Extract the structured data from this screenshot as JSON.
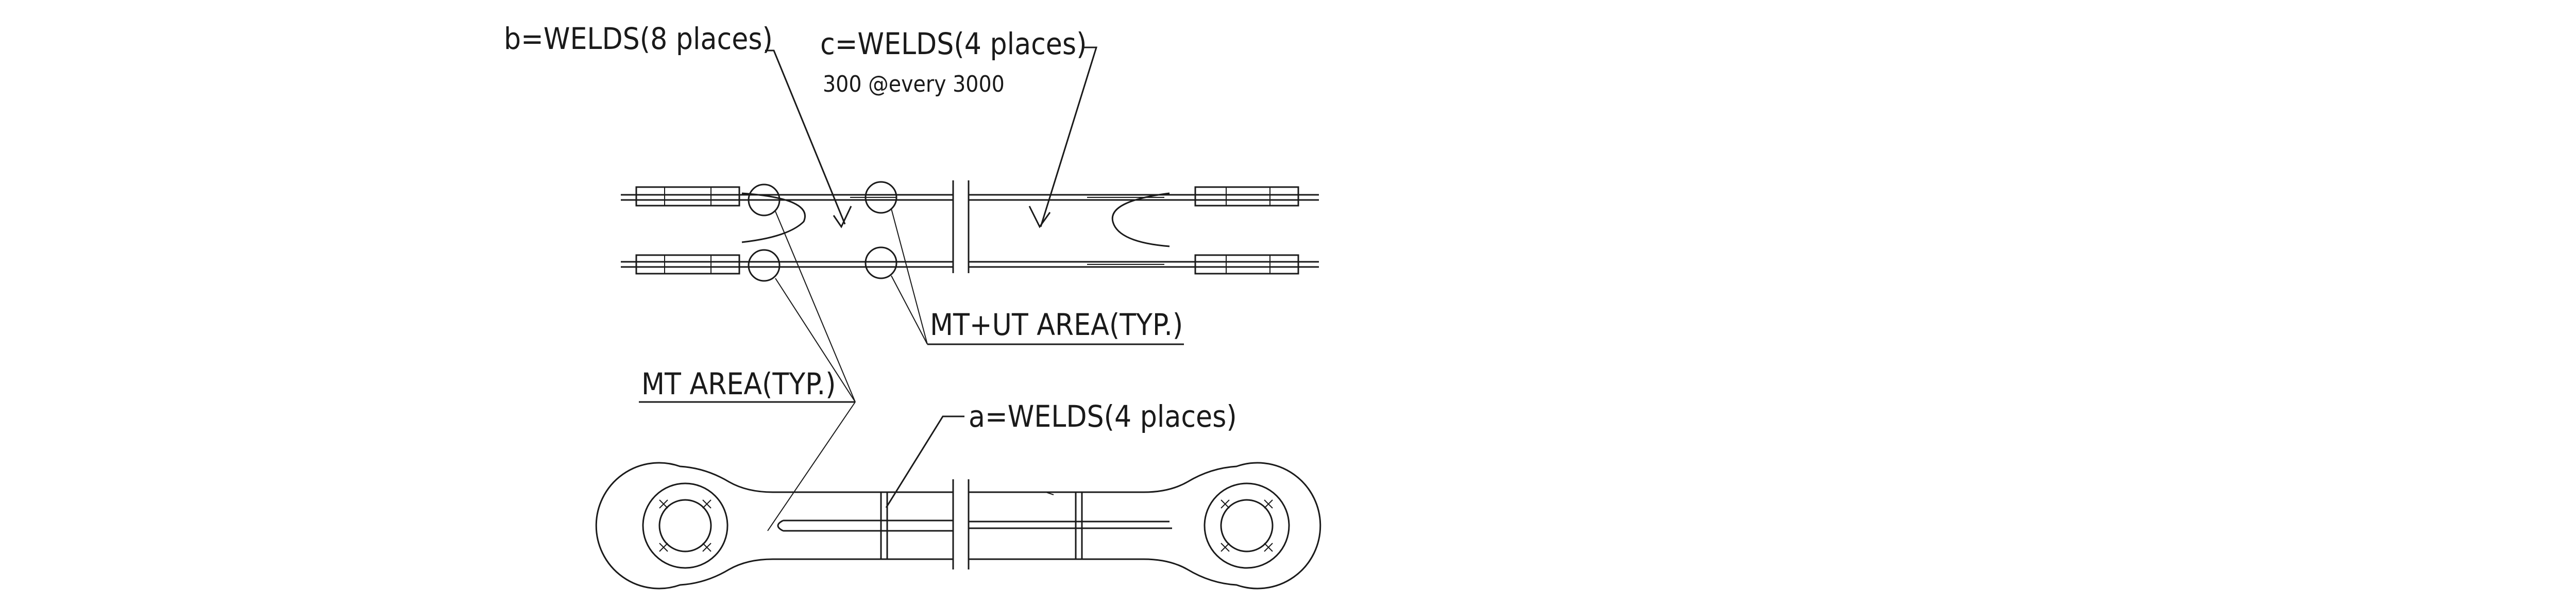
{
  "labels": {
    "weld_b": "b=WELDS(8 places)",
    "weld_c": "c=WELDS(4 places)",
    "weld_c_spacing": "300 @every 3000",
    "mt_ut_area": "MT+UT AREA(TYP.)",
    "mt_area": "MT AREA(TYP.)",
    "weld_a": "a=WELDS(4 places)"
  }
}
